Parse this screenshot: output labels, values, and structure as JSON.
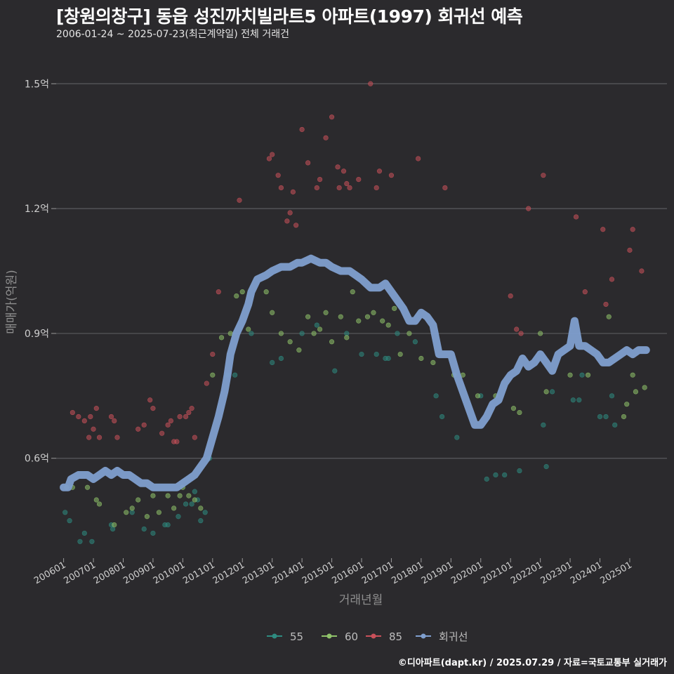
{
  "header": {
    "title": "[창원의창구] 동읍 성진까치빌라트5 아파트(1997) 회귀선 예측",
    "subtitle": "2006-01-24 ~ 2025-07-23(최근계약일) 전체 거래건"
  },
  "footer": {
    "credit": "©디아파트(dapt.kr) / 2025.07.29 / 자료=국토교통부 실거래가"
  },
  "colors": {
    "background": "#2b2a2d",
    "grid": "#5a5a5e",
    "s55": "#2e8b80",
    "s60": "#8fc26a",
    "s85": "#c9505a",
    "regression": "#7f9fcf"
  },
  "chart_data": {
    "type": "scatter",
    "title": "[창원의창구] 동읍 성진까치빌라트5 아파트(1997) 회귀선 예측",
    "xlabel": "거래년월",
    "ylabel": "매매가(억원)",
    "xlim": [
      2005.75,
      2026.25
    ],
    "ylim": [
      0.36,
      1.6
    ],
    "y_ticks": [
      {
        "value": 0.6,
        "label": "0.6억"
      },
      {
        "value": 0.9,
        "label": "0.9억"
      },
      {
        "value": 1.2,
        "label": "1.2억"
      },
      {
        "value": 1.5,
        "label": "1.5억"
      }
    ],
    "x_ticks": [
      {
        "value": 2006.0,
        "label": "200601"
      },
      {
        "value": 2007.0,
        "label": "200701"
      },
      {
        "value": 2008.0,
        "label": "200801"
      },
      {
        "value": 2009.0,
        "label": "200901"
      },
      {
        "value": 2010.0,
        "label": "201001"
      },
      {
        "value": 2011.0,
        "label": "201101"
      },
      {
        "value": 2012.0,
        "label": "201201"
      },
      {
        "value": 2013.0,
        "label": "201301"
      },
      {
        "value": 2014.0,
        "label": "201401"
      },
      {
        "value": 2015.0,
        "label": "201501"
      },
      {
        "value": 2016.0,
        "label": "201601"
      },
      {
        "value": 2017.0,
        "label": "201701"
      },
      {
        "value": 2018.0,
        "label": "201801"
      },
      {
        "value": 2019.0,
        "label": "201901"
      },
      {
        "value": 2020.0,
        "label": "202001"
      },
      {
        "value": 2021.0,
        "label": "202101"
      },
      {
        "value": 2022.0,
        "label": "202201"
      },
      {
        "value": 2023.0,
        "label": "202301"
      },
      {
        "value": 2024.0,
        "label": "202401"
      },
      {
        "value": 2025.0,
        "label": "202501"
      }
    ],
    "legend": [
      {
        "name": "55",
        "key": "s55"
      },
      {
        "name": "60",
        "key": "s60"
      },
      {
        "name": "85",
        "key": "s85"
      },
      {
        "name": "회귀선",
        "key": "regression"
      }
    ],
    "series": [
      {
        "name": "55",
        "key": "s55",
        "points": [
          [
            2006.05,
            0.47
          ],
          [
            2006.2,
            0.45
          ],
          [
            2006.55,
            0.4
          ],
          [
            2006.7,
            0.42
          ],
          [
            2006.95,
            0.4
          ],
          [
            2007.6,
            0.44
          ],
          [
            2007.65,
            0.43
          ],
          [
            2008.3,
            0.47
          ],
          [
            2008.7,
            0.43
          ],
          [
            2009.0,
            0.42
          ],
          [
            2009.4,
            0.44
          ],
          [
            2009.5,
            0.44
          ],
          [
            2009.85,
            0.46
          ],
          [
            2010.1,
            0.49
          ],
          [
            2010.3,
            0.49
          ],
          [
            2010.4,
            0.52
          ],
          [
            2010.5,
            0.5
          ],
          [
            2010.6,
            0.45
          ],
          [
            2010.75,
            0.47
          ],
          [
            2010.9,
            0.6
          ],
          [
            2011.5,
            0.8
          ],
          [
            2011.75,
            0.8
          ],
          [
            2012.3,
            0.9
          ],
          [
            2013.0,
            0.83
          ],
          [
            2013.3,
            0.84
          ],
          [
            2014.0,
            0.9
          ],
          [
            2014.5,
            0.92
          ],
          [
            2015.1,
            0.81
          ],
          [
            2015.5,
            0.9
          ],
          [
            2016.0,
            0.85
          ],
          [
            2016.5,
            0.85
          ],
          [
            2016.8,
            0.84
          ],
          [
            2016.9,
            0.84
          ],
          [
            2017.2,
            0.9
          ],
          [
            2017.8,
            0.88
          ],
          [
            2018.5,
            0.75
          ],
          [
            2018.7,
            0.7
          ],
          [
            2019.2,
            0.65
          ],
          [
            2020.0,
            0.75
          ],
          [
            2020.2,
            0.55
          ],
          [
            2020.5,
            0.56
          ],
          [
            2020.8,
            0.56
          ],
          [
            2021.3,
            0.57
          ],
          [
            2022.1,
            0.68
          ],
          [
            2022.2,
            0.58
          ],
          [
            2022.4,
            0.76
          ],
          [
            2023.1,
            0.74
          ],
          [
            2023.3,
            0.74
          ],
          [
            2023.4,
            0.8
          ],
          [
            2024.0,
            0.7
          ],
          [
            2024.2,
            0.7
          ],
          [
            2024.4,
            0.75
          ],
          [
            2024.5,
            0.68
          ]
        ]
      },
      {
        "name": "60",
        "key": "s60",
        "points": [
          [
            2006.1,
            0.53
          ],
          [
            2006.3,
            0.53
          ],
          [
            2006.8,
            0.53
          ],
          [
            2007.1,
            0.5
          ],
          [
            2007.2,
            0.49
          ],
          [
            2007.7,
            0.44
          ],
          [
            2008.1,
            0.47
          ],
          [
            2008.3,
            0.48
          ],
          [
            2008.5,
            0.5
          ],
          [
            2008.8,
            0.46
          ],
          [
            2009.0,
            0.51
          ],
          [
            2009.2,
            0.47
          ],
          [
            2009.5,
            0.51
          ],
          [
            2009.7,
            0.48
          ],
          [
            2009.9,
            0.51
          ],
          [
            2010.0,
            0.53
          ],
          [
            2010.2,
            0.51
          ],
          [
            2010.4,
            0.5
          ],
          [
            2010.6,
            0.48
          ],
          [
            2011.0,
            0.8
          ],
          [
            2011.3,
            0.89
          ],
          [
            2011.6,
            0.9
          ],
          [
            2011.8,
            0.99
          ],
          [
            2012.0,
            1.0
          ],
          [
            2012.2,
            0.91
          ],
          [
            2012.8,
            1.0
          ],
          [
            2013.0,
            0.95
          ],
          [
            2013.3,
            0.9
          ],
          [
            2013.6,
            0.88
          ],
          [
            2013.9,
            0.86
          ],
          [
            2014.2,
            0.94
          ],
          [
            2014.4,
            0.9
          ],
          [
            2014.6,
            0.91
          ],
          [
            2014.8,
            0.95
          ],
          [
            2015.0,
            0.88
          ],
          [
            2015.3,
            0.94
          ],
          [
            2015.5,
            0.89
          ],
          [
            2015.7,
            1.0
          ],
          [
            2015.9,
            0.93
          ],
          [
            2016.2,
            0.94
          ],
          [
            2016.4,
            0.95
          ],
          [
            2016.7,
            0.93
          ],
          [
            2016.9,
            0.92
          ],
          [
            2017.1,
            0.96
          ],
          [
            2017.3,
            0.85
          ],
          [
            2017.6,
            0.9
          ],
          [
            2018.0,
            0.84
          ],
          [
            2018.4,
            0.83
          ],
          [
            2019.1,
            0.8
          ],
          [
            2019.4,
            0.8
          ],
          [
            2019.9,
            0.75
          ],
          [
            2020.5,
            0.75
          ],
          [
            2021.1,
            0.72
          ],
          [
            2021.3,
            0.71
          ],
          [
            2022.0,
            0.9
          ],
          [
            2022.2,
            0.76
          ],
          [
            2023.0,
            0.8
          ],
          [
            2023.6,
            0.8
          ],
          [
            2024.3,
            0.94
          ],
          [
            2024.8,
            0.7
          ],
          [
            2024.9,
            0.73
          ],
          [
            2025.1,
            0.8
          ],
          [
            2025.2,
            0.76
          ],
          [
            2025.5,
            0.77
          ]
        ]
      },
      {
        "name": "85",
        "key": "s85",
        "points": [
          [
            2006.3,
            0.71
          ],
          [
            2006.5,
            0.7
          ],
          [
            2006.7,
            0.69
          ],
          [
            2006.85,
            0.65
          ],
          [
            2006.9,
            0.7
          ],
          [
            2007.0,
            0.67
          ],
          [
            2007.1,
            0.72
          ],
          [
            2007.2,
            0.65
          ],
          [
            2007.6,
            0.7
          ],
          [
            2007.7,
            0.69
          ],
          [
            2007.8,
            0.65
          ],
          [
            2008.5,
            0.67
          ],
          [
            2008.7,
            0.68
          ],
          [
            2008.9,
            0.74
          ],
          [
            2009.0,
            0.72
          ],
          [
            2009.3,
            0.66
          ],
          [
            2009.5,
            0.68
          ],
          [
            2009.6,
            0.69
          ],
          [
            2009.7,
            0.64
          ],
          [
            2009.8,
            0.64
          ],
          [
            2009.9,
            0.7
          ],
          [
            2010.1,
            0.7
          ],
          [
            2010.2,
            0.71
          ],
          [
            2010.3,
            0.72
          ],
          [
            2010.4,
            0.65
          ],
          [
            2010.8,
            0.78
          ],
          [
            2011.0,
            0.85
          ],
          [
            2011.2,
            1.0
          ],
          [
            2011.9,
            1.22
          ],
          [
            2012.9,
            1.32
          ],
          [
            2013.0,
            1.33
          ],
          [
            2013.2,
            1.28
          ],
          [
            2013.3,
            1.25
          ],
          [
            2013.5,
            1.17
          ],
          [
            2013.6,
            1.19
          ],
          [
            2013.7,
            1.24
          ],
          [
            2013.8,
            1.16
          ],
          [
            2014.0,
            1.39
          ],
          [
            2014.2,
            1.31
          ],
          [
            2014.5,
            1.25
          ],
          [
            2014.6,
            1.27
          ],
          [
            2014.8,
            1.37
          ],
          [
            2015.0,
            1.42
          ],
          [
            2015.2,
            1.3
          ],
          [
            2015.25,
            1.25
          ],
          [
            2015.4,
            1.29
          ],
          [
            2015.5,
            1.26
          ],
          [
            2015.6,
            1.25
          ],
          [
            2015.9,
            1.27
          ],
          [
            2016.3,
            1.5
          ],
          [
            2016.5,
            1.25
          ],
          [
            2016.6,
            1.29
          ],
          [
            2017.0,
            1.28
          ],
          [
            2017.9,
            1.32
          ],
          [
            2018.8,
            1.25
          ],
          [
            2021.0,
            0.99
          ],
          [
            2021.2,
            0.91
          ],
          [
            2021.35,
            0.9
          ],
          [
            2021.6,
            1.2
          ],
          [
            2022.1,
            1.28
          ],
          [
            2023.2,
            1.18
          ],
          [
            2023.5,
            1.0
          ],
          [
            2024.1,
            1.15
          ],
          [
            2024.2,
            0.97
          ],
          [
            2024.4,
            1.03
          ],
          [
            2025.0,
            1.1
          ],
          [
            2025.1,
            1.15
          ],
          [
            2025.4,
            1.05
          ]
        ]
      }
    ],
    "regression": {
      "name": "회귀선",
      "key": "regression",
      "points": [
        [
          2006.0,
          0.53
        ],
        [
          2006.15,
          0.53
        ],
        [
          2006.25,
          0.55
        ],
        [
          2006.5,
          0.56
        ],
        [
          2006.8,
          0.56
        ],
        [
          2007.0,
          0.55
        ],
        [
          2007.2,
          0.56
        ],
        [
          2007.4,
          0.57
        ],
        [
          2007.6,
          0.56
        ],
        [
          2007.8,
          0.57
        ],
        [
          2008.0,
          0.56
        ],
        [
          2008.2,
          0.56
        ],
        [
          2008.4,
          0.55
        ],
        [
          2008.6,
          0.54
        ],
        [
          2008.8,
          0.54
        ],
        [
          2009.0,
          0.53
        ],
        [
          2009.2,
          0.53
        ],
        [
          2009.4,
          0.53
        ],
        [
          2009.6,
          0.53
        ],
        [
          2009.8,
          0.53
        ],
        [
          2010.0,
          0.54
        ],
        [
          2010.2,
          0.55
        ],
        [
          2010.4,
          0.56
        ],
        [
          2010.6,
          0.58
        ],
        [
          2010.8,
          0.6
        ],
        [
          2011.0,
          0.65
        ],
        [
          2011.2,
          0.7
        ],
        [
          2011.4,
          0.76
        ],
        [
          2011.5,
          0.8
        ],
        [
          2011.6,
          0.85
        ],
        [
          2011.8,
          0.9
        ],
        [
          2012.0,
          0.93
        ],
        [
          2012.2,
          0.97
        ],
        [
          2012.3,
          1.0
        ],
        [
          2012.5,
          1.03
        ],
        [
          2012.8,
          1.04
        ],
        [
          2013.0,
          1.05
        ],
        [
          2013.3,
          1.06
        ],
        [
          2013.6,
          1.06
        ],
        [
          2013.85,
          1.07
        ],
        [
          2014.0,
          1.07
        ],
        [
          2014.3,
          1.08
        ],
        [
          2014.6,
          1.07
        ],
        [
          2014.8,
          1.07
        ],
        [
          2015.0,
          1.06
        ],
        [
          2015.3,
          1.05
        ],
        [
          2015.6,
          1.05
        ],
        [
          2015.8,
          1.04
        ],
        [
          2016.0,
          1.03
        ],
        [
          2016.3,
          1.01
        ],
        [
          2016.6,
          1.01
        ],
        [
          2016.8,
          1.02
        ],
        [
          2017.0,
          1.0
        ],
        [
          2017.2,
          0.98
        ],
        [
          2017.4,
          0.96
        ],
        [
          2017.6,
          0.93
        ],
        [
          2017.8,
          0.93
        ],
        [
          2018.0,
          0.95
        ],
        [
          2018.2,
          0.94
        ],
        [
          2018.4,
          0.92
        ],
        [
          2018.6,
          0.85
        ],
        [
          2018.8,
          0.85
        ],
        [
          2019.0,
          0.85
        ],
        [
          2019.2,
          0.8
        ],
        [
          2019.4,
          0.76
        ],
        [
          2019.6,
          0.72
        ],
        [
          2019.8,
          0.68
        ],
        [
          2020.0,
          0.68
        ],
        [
          2020.2,
          0.7
        ],
        [
          2020.4,
          0.73
        ],
        [
          2020.6,
          0.74
        ],
        [
          2020.8,
          0.78
        ],
        [
          2021.0,
          0.8
        ],
        [
          2021.2,
          0.81
        ],
        [
          2021.4,
          0.84
        ],
        [
          2021.6,
          0.82
        ],
        [
          2021.8,
          0.83
        ],
        [
          2022.0,
          0.85
        ],
        [
          2022.2,
          0.83
        ],
        [
          2022.4,
          0.81
        ],
        [
          2022.6,
          0.85
        ],
        [
          2022.8,
          0.86
        ],
        [
          2023.0,
          0.87
        ],
        [
          2023.15,
          0.93
        ],
        [
          2023.3,
          0.87
        ],
        [
          2023.5,
          0.87
        ],
        [
          2023.7,
          0.86
        ],
        [
          2023.9,
          0.85
        ],
        [
          2024.1,
          0.83
        ],
        [
          2024.3,
          0.83
        ],
        [
          2024.5,
          0.84
        ],
        [
          2024.7,
          0.85
        ],
        [
          2024.9,
          0.86
        ],
        [
          2025.1,
          0.85
        ],
        [
          2025.3,
          0.86
        ],
        [
          2025.55,
          0.86
        ]
      ]
    }
  }
}
